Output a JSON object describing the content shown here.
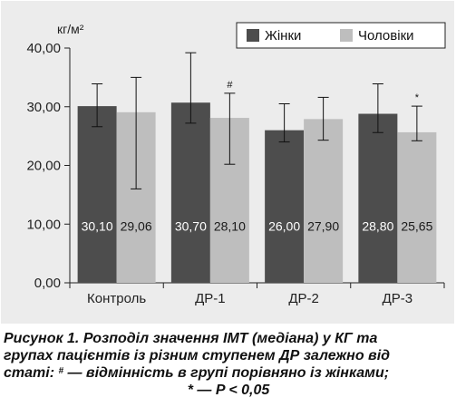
{
  "chart_data": {
    "type": "bar",
    "unit_label": "кг/м²",
    "categories": [
      "Контроль",
      "ДР-1",
      "ДР-2",
      "ДР-3"
    ],
    "ylim": [
      0,
      40
    ],
    "yticks": [
      "0,00",
      "10,00",
      "20,00",
      "30,00",
      "40,00"
    ],
    "grid": false,
    "legend_position": "top-right",
    "series": [
      {
        "name": "Жінки",
        "color": "#4d4d4d",
        "label_color": "#ffffff",
        "values": [
          30.1,
          30.7,
          26.0,
          28.8
        ],
        "labels": [
          "30,10",
          "30,70",
          "26,00",
          "28,80"
        ],
        "err_low": [
          26.6,
          27.2,
          24.0,
          25.6
        ],
        "err_high": [
          33.9,
          39.2,
          30.5,
          33.9
        ],
        "markers": [
          "",
          "",
          "",
          ""
        ]
      },
      {
        "name": "Чоловіки",
        "color": "#bebebe",
        "label_color": "#1a1a1a",
        "values": [
          29.06,
          28.1,
          27.9,
          25.65
        ],
        "labels": [
          "29,06",
          "28,10",
          "27,90",
          "25,65"
        ],
        "err_low": [
          16.0,
          20.2,
          24.3,
          24.2
        ],
        "err_high": [
          35.0,
          32.3,
          31.6,
          30.1
        ],
        "markers": [
          "",
          "#",
          "",
          "*"
        ]
      }
    ]
  },
  "caption": {
    "line1": "Рисунок 1. Розподіл значення ІМТ (медіана) у КГ та",
    "line2": "групах пацієнтів із різним ступенем ДР залежно від",
    "line3_before": "статі: ",
    "line3_sup": "#",
    "line3_after": " — відмінність в групі порівняно із жінками;",
    "line4": "* — P < 0,05"
  }
}
